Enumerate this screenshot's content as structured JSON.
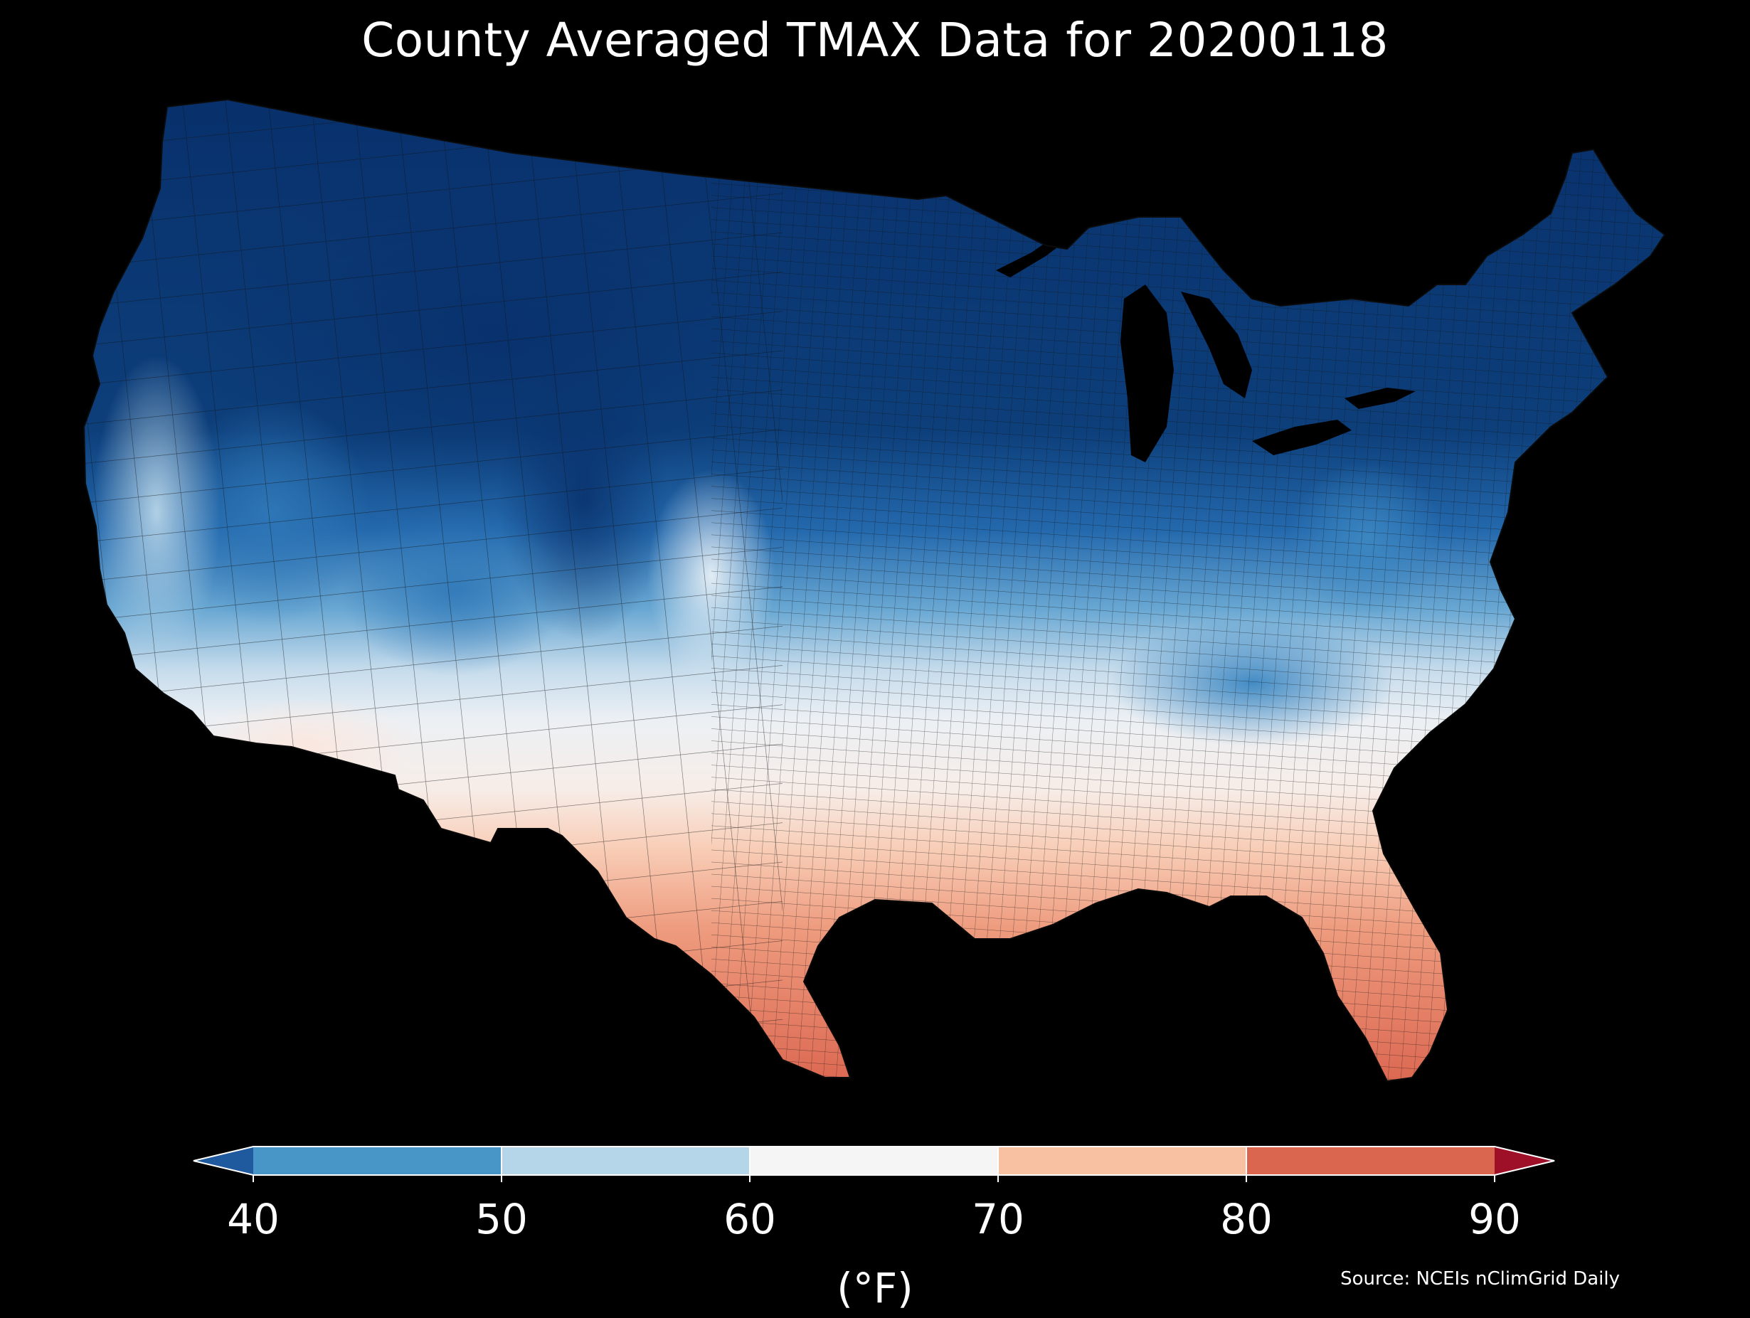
{
  "title": "County Averaged TMAX Data for 20200118",
  "source": "Source: NCEIs nClimGrid Daily",
  "colorbar": {
    "unit_label": "(°F)",
    "ticks": [
      "40",
      "50",
      "60",
      "70",
      "80",
      "90"
    ],
    "bins": [
      {
        "min": null,
        "max": 40,
        "color": "#1f5a9e",
        "name": "below-40"
      },
      {
        "min": 40,
        "max": 50,
        "color": "#4895c7",
        "name": "40-50"
      },
      {
        "min": 50,
        "max": 60,
        "color": "#b5d6e8",
        "name": "50-60"
      },
      {
        "min": 60,
        "max": 70,
        "color": "#f5f5f5",
        "name": "60-70"
      },
      {
        "min": 70,
        "max": 80,
        "color": "#f7c1a2",
        "name": "70-80"
      },
      {
        "min": 80,
        "max": 90,
        "color": "#db6650",
        "name": "80-90"
      },
      {
        "min": 90,
        "max": null,
        "color": "#9e1027",
        "name": "above-90"
      }
    ],
    "extend": "both"
  },
  "map": {
    "region": "Contiguous United States",
    "background_color": "#000000",
    "county_outline_color": "#1a1a1a",
    "regional_colors": {
      "north_deep": "#08306b",
      "north": "#0e407d",
      "mountain_west": "#175a9c",
      "central_blue": "#3b84c0",
      "light_blue": "#9ecae1",
      "pale_blue": "#cfe2ef",
      "neutral": "#f3f3f3",
      "warm_light": "#f8d7c4",
      "warm": "#ee9d7f",
      "warm_deep": "#dc6850"
    }
  }
}
